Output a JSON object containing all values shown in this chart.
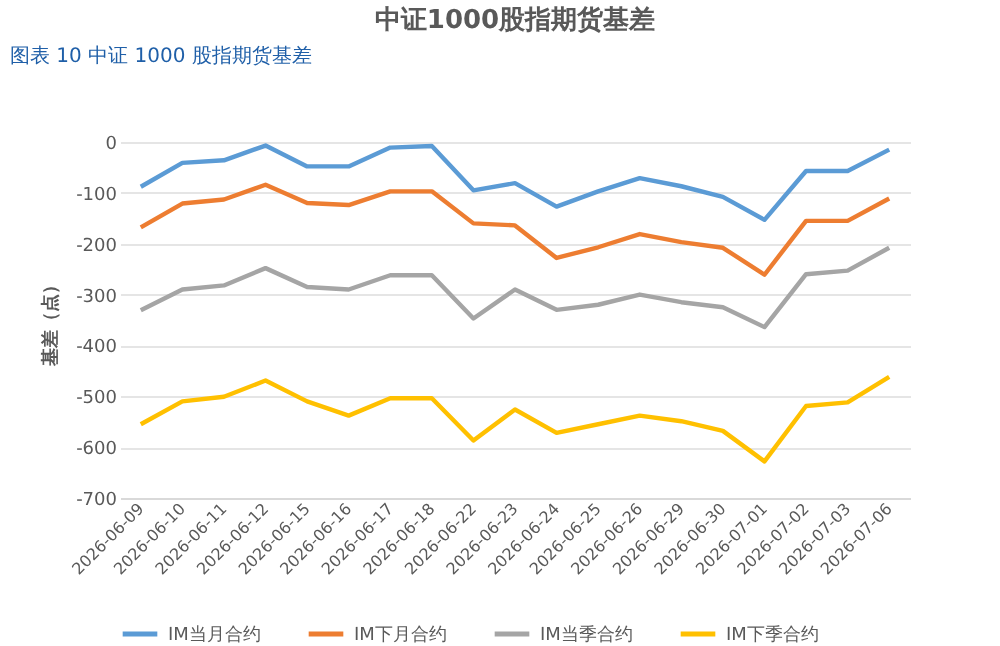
{
  "chart_data": {
    "type": "line",
    "title": "中证1000股指期货基差",
    "annotations": [
      "图表 10 中证 1000 股指期货基差"
    ],
    "ylabel": "基差（点）",
    "categories": [
      "2026-06-09",
      "2026-06-10",
      "2026-06-11",
      "2026-06-12",
      "2026-06-15",
      "2026-06-16",
      "2026-06-17",
      "2026-06-18",
      "2026-06-22",
      "2026-06-23",
      "2026-06-24",
      "2026-06-25",
      "2026-06-26",
      "2026-06-29",
      "2026-06-30",
      "2026-07-01",
      "2026-07-02",
      "2026-07-03",
      "2026-07-06"
    ],
    "series": [
      {
        "name": "IM当月合约",
        "color": "#5b9bd5",
        "values": [
          -88,
          -41,
          -36,
          -7,
          -48,
          -48,
          -11,
          -8,
          -95,
          -81,
          -127,
          -97,
          -71,
          -87,
          -108,
          -153,
          -57,
          -57,
          -15
        ]
      },
      {
        "name": "IM下月合约",
        "color": "#ed7d31",
        "values": [
          -168,
          -121,
          -113,
          -84,
          -120,
          -124,
          -97,
          -97,
          -160,
          -164,
          -228,
          -207,
          -181,
          -197,
          -208,
          -261,
          -155,
          -155,
          -111
        ]
      },
      {
        "name": "IM当季合约",
        "color": "#a5a5a5",
        "values": [
          -331,
          -290,
          -282,
          -248,
          -285,
          -290,
          -262,
          -262,
          -347,
          -290,
          -330,
          -320,
          -300,
          -315,
          -325,
          -364,
          -260,
          -253,
          -208
        ]
      },
      {
        "name": "IM下季合约",
        "color": "#ffc000",
        "values": [
          -555,
          -510,
          -501,
          -469,
          -510,
          -538,
          -504,
          -504,
          -587,
          -526,
          -572,
          -555,
          -538,
          -549,
          -568,
          -628,
          -519,
          -512,
          -462
        ]
      }
    ],
    "ylim": [
      -700,
      0
    ],
    "yticks": [
      -700,
      -600,
      -500,
      -400,
      -300,
      -200,
      -100,
      0
    ],
    "grid": "y",
    "legend": "bottom",
    "marker": "none",
    "line_style": "solid"
  }
}
